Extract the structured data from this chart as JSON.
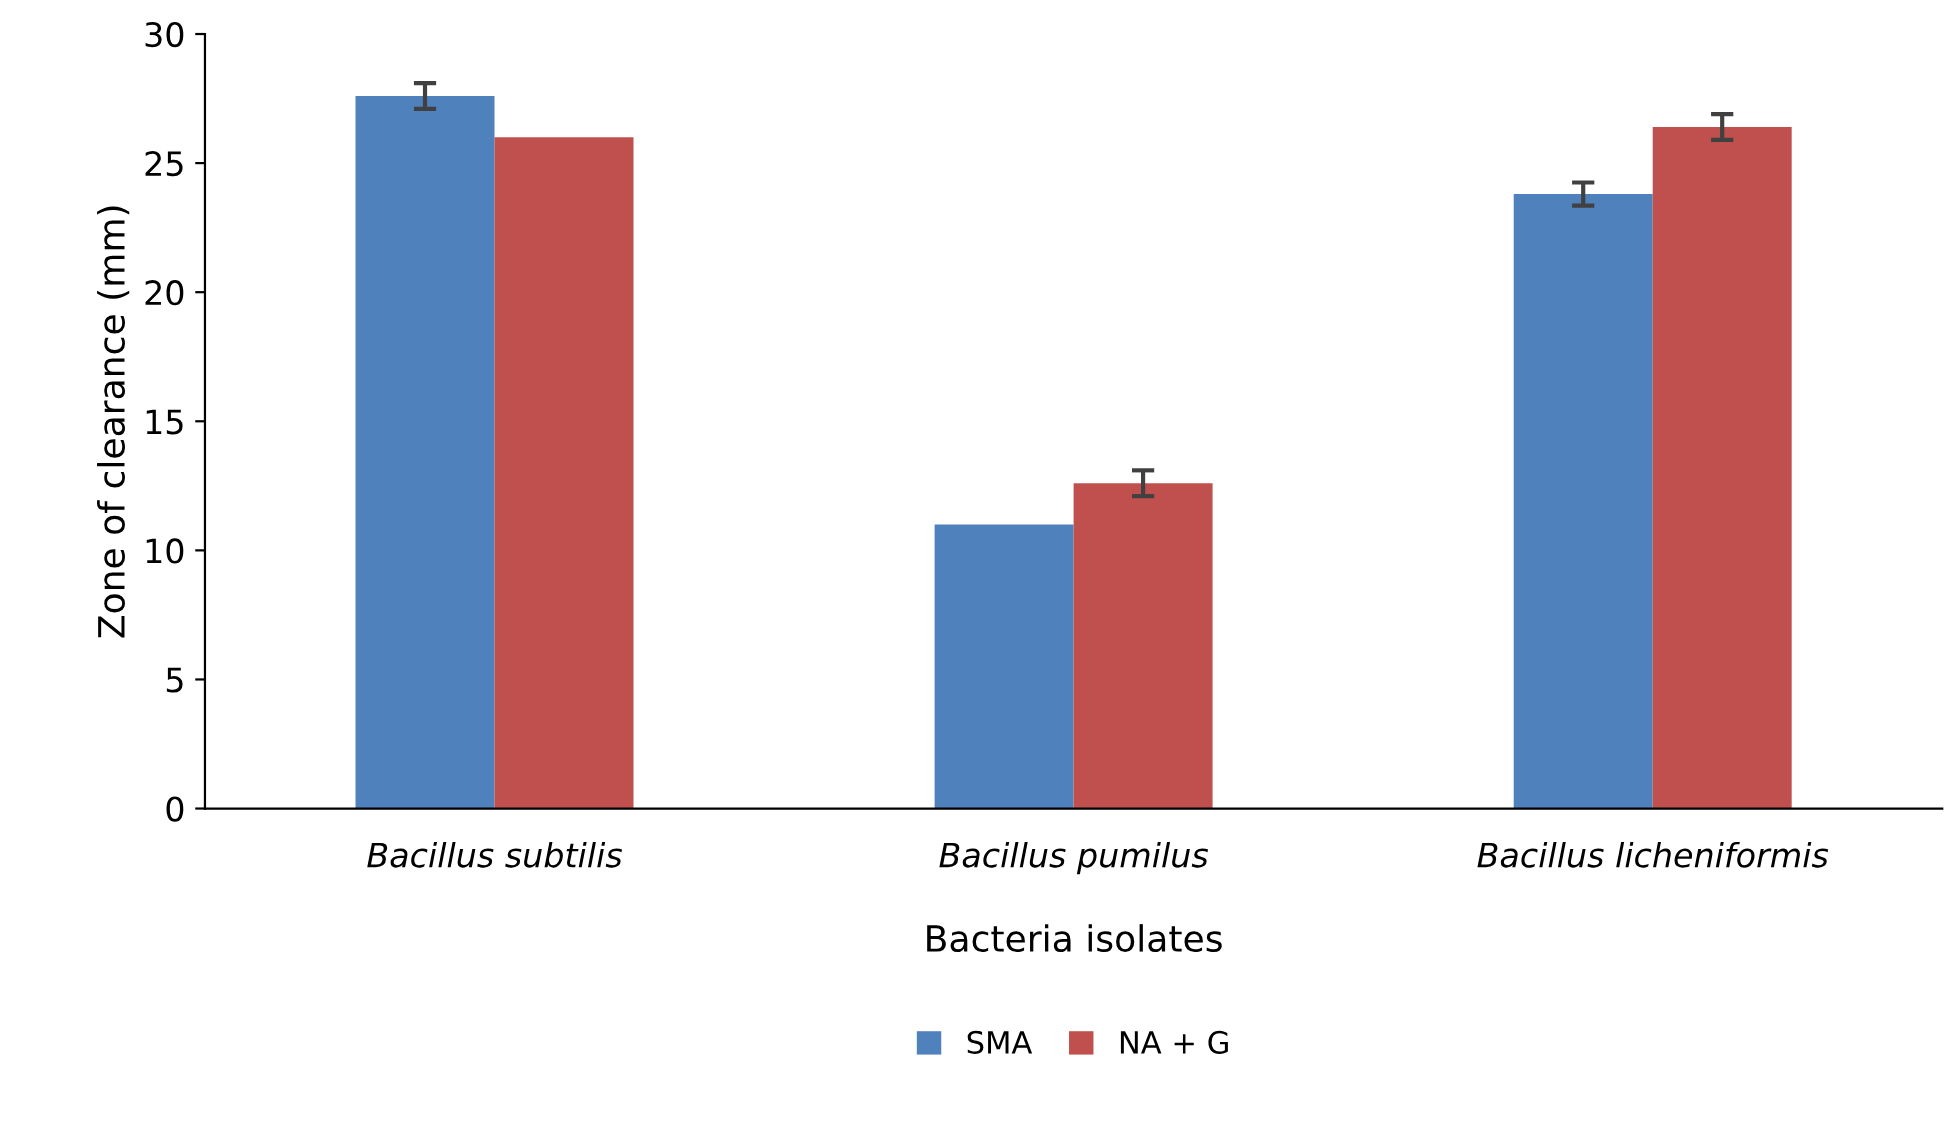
{
  "chart_data": {
    "type": "bar",
    "xlabel": "Bacteria isolates",
    "ylabel": "Zone of clearance (mm)",
    "categories": [
      "Bacillus subtilis",
      "Bacillus pumilus",
      "Bacillus licheniformis"
    ],
    "series": [
      {
        "name": "SMA",
        "color": "#4f81bd",
        "values": [
          27.6,
          11.0,
          23.8
        ],
        "errors": [
          0.5,
          null,
          0.45
        ]
      },
      {
        "name": "NA + G",
        "color": "#c0504d",
        "values": [
          26.0,
          12.6,
          26.4
        ],
        "errors": [
          null,
          0.5,
          0.5
        ]
      }
    ],
    "ylim": [
      0,
      30
    ],
    "yticks": [
      0,
      5,
      10,
      15,
      20,
      25,
      30
    ],
    "grid": false,
    "legend": "bottom"
  }
}
